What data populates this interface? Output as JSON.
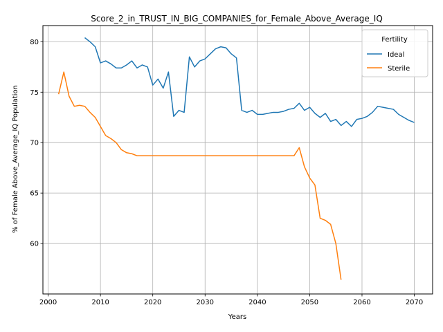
{
  "chart_data": {
    "type": "line",
    "title": "Score_2_in_TRUST_IN_BIG_COMPANIES_for_Female_Above_Average_IQ",
    "xlabel": "Years",
    "ylabel": "% of Female Above_Average_IQ Population",
    "xlim": [
      1999,
      2073.5
    ],
    "ylim": [
      55.0,
      81.6
    ],
    "xticks": [
      2000,
      2010,
      2020,
      2030,
      2040,
      2050,
      2060,
      2070
    ],
    "yticks": [
      60,
      65,
      70,
      75,
      80
    ],
    "grid": true,
    "legend": {
      "title": "Fertility",
      "placement": "top-right"
    },
    "series": [
      {
        "name": "Ideal",
        "color": "#1f77b4",
        "x": [
          2007,
          2008,
          2009,
          2010,
          2011,
          2012,
          2013,
          2014,
          2015,
          2016,
          2017,
          2018,
          2019,
          2020,
          2021,
          2022,
          2023,
          2024,
          2025,
          2026,
          2027,
          2028,
          2029,
          2030,
          2031,
          2032,
          2033,
          2034,
          2035,
          2036,
          2037,
          2038,
          2039,
          2040,
          2041,
          2042,
          2043,
          2044,
          2045,
          2046,
          2047,
          2048,
          2049,
          2050,
          2051,
          2052,
          2053,
          2054,
          2055,
          2056,
          2057,
          2058,
          2059,
          2060,
          2061,
          2062,
          2063,
          2064,
          2065,
          2066,
          2067,
          2068,
          2069,
          2070
        ],
        "y": [
          80.4,
          80.0,
          79.5,
          77.9,
          78.1,
          77.8,
          77.4,
          77.4,
          77.7,
          78.1,
          77.4,
          77.7,
          77.5,
          75.7,
          76.3,
          75.4,
          77.0,
          72.6,
          73.2,
          73.0,
          78.5,
          77.5,
          78.1,
          78.3,
          78.8,
          79.3,
          79.5,
          79.4,
          78.8,
          78.4,
          73.2,
          73.0,
          73.2,
          72.8,
          72.8,
          72.9,
          73.0,
          73.0,
          73.1,
          73.3,
          73.4,
          73.9,
          73.2,
          73.5,
          72.9,
          72.5,
          72.9,
          72.1,
          72.3,
          71.7,
          72.1,
          71.6,
          72.3,
          72.4,
          72.6,
          73.0,
          73.6,
          73.5,
          73.4,
          73.3,
          72.8,
          72.5,
          72.2,
          72.0
        ]
      },
      {
        "name": "Sterile",
        "color": "#ff7f0e",
        "x": [
          2002,
          2003,
          2004,
          2005,
          2006,
          2007,
          2008,
          2009,
          2010,
          2011,
          2012,
          2013,
          2014,
          2015,
          2016,
          2017,
          2018,
          2019,
          2020,
          2021,
          2022,
          2023,
          2024,
          2025,
          2026,
          2027,
          2028,
          2029,
          2030,
          2031,
          2032,
          2033,
          2034,
          2035,
          2036,
          2037,
          2038,
          2039,
          2040,
          2041,
          2042,
          2043,
          2044,
          2045,
          2046,
          2047,
          2048,
          2049,
          2050,
          2051,
          2052,
          2053,
          2054,
          2055,
          2056
        ],
        "y": [
          74.8,
          77.0,
          74.6,
          73.6,
          73.7,
          73.6,
          73.0,
          72.5,
          71.6,
          70.7,
          70.4,
          70.0,
          69.3,
          69.0,
          68.9,
          68.7,
          68.7,
          68.7,
          68.7,
          68.7,
          68.7,
          68.7,
          68.7,
          68.7,
          68.7,
          68.7,
          68.7,
          68.7,
          68.7,
          68.7,
          68.7,
          68.7,
          68.7,
          68.7,
          68.7,
          68.7,
          68.7,
          68.7,
          68.7,
          68.7,
          68.7,
          68.7,
          68.7,
          68.7,
          68.7,
          68.7,
          69.5,
          67.6,
          66.5,
          65.8,
          62.5,
          62.3,
          61.9,
          60.0,
          56.4
        ]
      }
    ]
  }
}
